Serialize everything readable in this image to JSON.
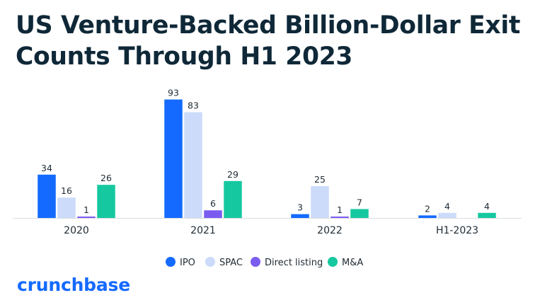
{
  "title_line1": "US Venture-Backed Billion-Dollar Exit",
  "title_line2": "Counts Through H1 2023",
  "brand": "crunchbase",
  "chart_data": {
    "type": "bar",
    "title": "US Venture-Backed Billion-Dollar Exit Counts Through H1 2023",
    "xlabel": "",
    "ylabel": "",
    "categories": [
      "2020",
      "2021",
      "2022",
      "H1-2023"
    ],
    "series": [
      {
        "name": "IPO",
        "color": "#146aff",
        "values": [
          34,
          93,
          3,
          2
        ]
      },
      {
        "name": "SPAC",
        "color": "#ccdbfa",
        "values": [
          16,
          83,
          25,
          4
        ]
      },
      {
        "name": "Direct listing",
        "color": "#7b5cf0",
        "values": [
          1,
          6,
          1,
          null
        ]
      },
      {
        "name": "M&A",
        "color": "#16c8a0",
        "values": [
          26,
          29,
          7,
          4
        ]
      }
    ],
    "ylim": [
      0,
      95
    ],
    "grid": false,
    "legend": "bottom-center"
  }
}
